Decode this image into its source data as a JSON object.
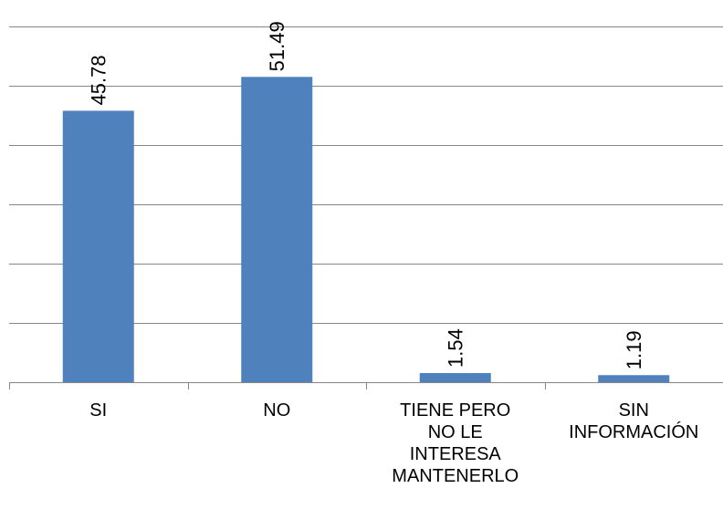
{
  "chart_data": {
    "type": "bar",
    "categories": [
      "SI",
      "NO",
      "TIENE PERO\nNO LE\nINTERESA\nMANTENERLO",
      "SIN\nINFORMACIÓN"
    ],
    "values": [
      45.78,
      51.49,
      1.54,
      1.19
    ],
    "data_labels": [
      "45.78",
      "51.49",
      "1.54",
      "1.19"
    ],
    "ylim": [
      0,
      60
    ],
    "grid": true,
    "legend": "none",
    "bar_color": "#4F81BD"
  }
}
